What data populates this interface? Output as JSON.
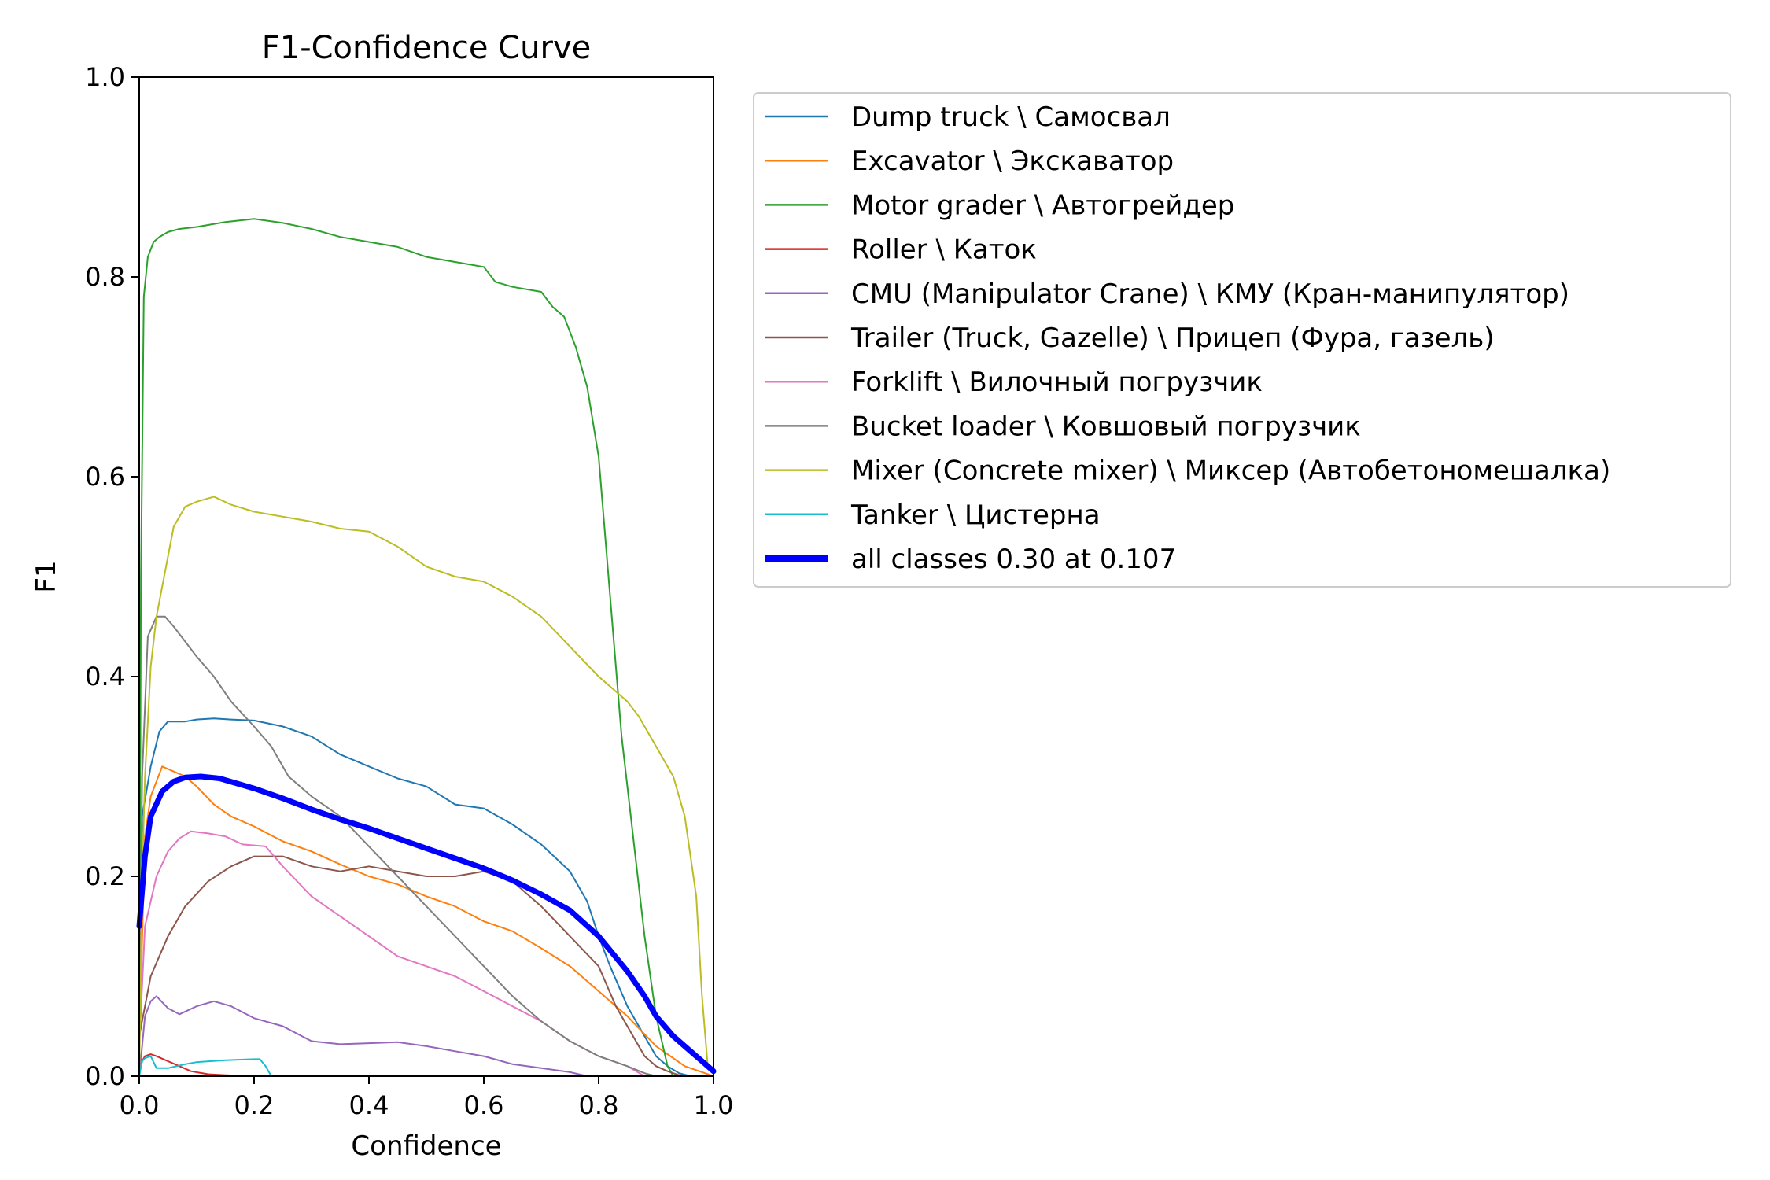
{
  "chart_data": {
    "type": "line",
    "title": "F1-Confidence Curve",
    "xlabel": "Confidence",
    "ylabel": "F1",
    "xlim": [
      0,
      1
    ],
    "ylim": [
      0,
      1
    ],
    "xticks": [
      "0.0",
      "0.2",
      "0.4",
      "0.6",
      "0.8",
      "1.0"
    ],
    "yticks": [
      "0.0",
      "0.2",
      "0.4",
      "0.6",
      "0.8",
      "1.0"
    ],
    "grid": false,
    "legend_position": "outside-right-top",
    "series": [
      {
        "name": "Dump truck \\ Самосвал",
        "color": "#1f77b4",
        "width": 2,
        "x": [
          0.0,
          0.005,
          0.02,
          0.035,
          0.05,
          0.08,
          0.1,
          0.13,
          0.16,
          0.2,
          0.25,
          0.3,
          0.35,
          0.4,
          0.45,
          0.5,
          0.55,
          0.6,
          0.65,
          0.7,
          0.75,
          0.78,
          0.8,
          0.82,
          0.85,
          0.88,
          0.9,
          0.92,
          0.94,
          0.96
        ],
        "y": [
          0.05,
          0.26,
          0.31,
          0.345,
          0.355,
          0.355,
          0.357,
          0.358,
          0.357,
          0.356,
          0.35,
          0.34,
          0.322,
          0.31,
          0.298,
          0.29,
          0.272,
          0.268,
          0.252,
          0.232,
          0.205,
          0.175,
          0.14,
          0.11,
          0.07,
          0.04,
          0.02,
          0.01,
          0.003,
          0.0
        ]
      },
      {
        "name": "Excavator \\ Экскаватор",
        "color": "#ff7f0e",
        "width": 2,
        "x": [
          0.0,
          0.01,
          0.02,
          0.04,
          0.06,
          0.08,
          0.1,
          0.13,
          0.16,
          0.2,
          0.25,
          0.3,
          0.35,
          0.4,
          0.45,
          0.5,
          0.55,
          0.6,
          0.65,
          0.7,
          0.75,
          0.8,
          0.85,
          0.9,
          0.95,
          1.0
        ],
        "y": [
          0.03,
          0.24,
          0.28,
          0.31,
          0.305,
          0.3,
          0.29,
          0.272,
          0.26,
          0.25,
          0.235,
          0.225,
          0.212,
          0.2,
          0.192,
          0.18,
          0.17,
          0.155,
          0.145,
          0.128,
          0.11,
          0.085,
          0.06,
          0.03,
          0.01,
          0.0
        ]
      },
      {
        "name": "Motor grader \\ Автогрейдер",
        "color": "#2ca02c",
        "width": 2,
        "x": [
          0.0,
          0.003,
          0.008,
          0.015,
          0.025,
          0.035,
          0.05,
          0.07,
          0.1,
          0.15,
          0.2,
          0.25,
          0.3,
          0.35,
          0.4,
          0.45,
          0.5,
          0.55,
          0.6,
          0.62,
          0.65,
          0.7,
          0.72,
          0.74,
          0.76,
          0.78,
          0.8,
          0.82,
          0.84,
          0.86,
          0.88,
          0.9,
          0.92,
          0.93
        ],
        "y": [
          0.0,
          0.5,
          0.78,
          0.82,
          0.835,
          0.84,
          0.845,
          0.848,
          0.85,
          0.855,
          0.858,
          0.854,
          0.848,
          0.84,
          0.835,
          0.83,
          0.82,
          0.815,
          0.81,
          0.795,
          0.79,
          0.785,
          0.77,
          0.76,
          0.73,
          0.69,
          0.62,
          0.48,
          0.34,
          0.24,
          0.14,
          0.06,
          0.01,
          0.0
        ]
      },
      {
        "name": "Roller \\ Каток",
        "color": "#d62728",
        "width": 2,
        "x": [
          0.0,
          0.01,
          0.02,
          0.03,
          0.05,
          0.07,
          0.09,
          0.12,
          0.15,
          0.2,
          0.25,
          0.3,
          0.4,
          0.5,
          0.6,
          0.7,
          0.8
        ],
        "y": [
          0.01,
          0.02,
          0.022,
          0.02,
          0.015,
          0.01,
          0.005,
          0.002,
          0.001,
          0.0,
          0.0,
          0.0,
          0.0,
          0.0,
          0.0,
          0.0,
          0.0
        ]
      },
      {
        "name": "CMU (Manipulator Crane) \\ КМУ (Кран-манипулятор)",
        "color": "#9467bd",
        "width": 2,
        "x": [
          0.0,
          0.01,
          0.02,
          0.03,
          0.05,
          0.07,
          0.1,
          0.13,
          0.16,
          0.2,
          0.25,
          0.3,
          0.35,
          0.4,
          0.45,
          0.5,
          0.55,
          0.6,
          0.65,
          0.7,
          0.75,
          0.78
        ],
        "y": [
          0.0,
          0.06,
          0.075,
          0.08,
          0.068,
          0.062,
          0.07,
          0.075,
          0.07,
          0.058,
          0.05,
          0.035,
          0.032,
          0.033,
          0.034,
          0.03,
          0.025,
          0.02,
          0.012,
          0.008,
          0.004,
          0.0
        ]
      },
      {
        "name": "Trailer (Truck, Gazelle) \\ Прицеп (Фура, газель)",
        "color": "#8c564b",
        "width": 2,
        "x": [
          0.0,
          0.02,
          0.05,
          0.08,
          0.12,
          0.16,
          0.2,
          0.25,
          0.3,
          0.35,
          0.4,
          0.45,
          0.5,
          0.55,
          0.6,
          0.65,
          0.7,
          0.75,
          0.8,
          0.83,
          0.86,
          0.88,
          0.9,
          0.92,
          0.94,
          0.96
        ],
        "y": [
          0.04,
          0.1,
          0.14,
          0.17,
          0.195,
          0.21,
          0.22,
          0.22,
          0.21,
          0.205,
          0.21,
          0.205,
          0.2,
          0.2,
          0.205,
          0.195,
          0.17,
          0.14,
          0.11,
          0.07,
          0.04,
          0.02,
          0.01,
          0.005,
          0.001,
          0.0
        ]
      },
      {
        "name": "Forklift \\ Вилочный погрузчик",
        "color": "#e377c2",
        "width": 2,
        "x": [
          0.0,
          0.01,
          0.03,
          0.05,
          0.07,
          0.09,
          0.12,
          0.15,
          0.18,
          0.22,
          0.25,
          0.3,
          0.35,
          0.4,
          0.45,
          0.5,
          0.55,
          0.6,
          0.65,
          0.7,
          0.75,
          0.8,
          0.85,
          0.88
        ],
        "y": [
          0.03,
          0.15,
          0.2,
          0.225,
          0.238,
          0.245,
          0.243,
          0.24,
          0.232,
          0.23,
          0.21,
          0.18,
          0.16,
          0.14,
          0.12,
          0.11,
          0.1,
          0.085,
          0.07,
          0.055,
          0.035,
          0.02,
          0.01,
          0.0
        ]
      },
      {
        "name": "Bucket loader \\ Ковшовый погрузчик",
        "color": "#7f7f7f",
        "width": 2,
        "x": [
          0.0,
          0.005,
          0.015,
          0.03,
          0.045,
          0.06,
          0.08,
          0.1,
          0.13,
          0.16,
          0.2,
          0.23,
          0.26,
          0.3,
          0.35,
          0.4,
          0.45,
          0.5,
          0.55,
          0.6,
          0.65,
          0.7,
          0.75,
          0.8,
          0.85,
          0.88,
          0.9
        ],
        "y": [
          0.03,
          0.3,
          0.44,
          0.46,
          0.46,
          0.45,
          0.435,
          0.42,
          0.4,
          0.375,
          0.35,
          0.33,
          0.3,
          0.28,
          0.26,
          0.23,
          0.2,
          0.17,
          0.14,
          0.11,
          0.08,
          0.055,
          0.035,
          0.02,
          0.01,
          0.003,
          0.0
        ]
      },
      {
        "name": "Mixer (Concrete mixer) \\ Миксер (Автобетономешалка)",
        "color": "#bcbd22",
        "width": 2,
        "x": [
          0.0,
          0.005,
          0.01,
          0.02,
          0.03,
          0.04,
          0.05,
          0.06,
          0.08,
          0.1,
          0.13,
          0.16,
          0.2,
          0.25,
          0.3,
          0.35,
          0.4,
          0.45,
          0.5,
          0.55,
          0.6,
          0.65,
          0.7,
          0.75,
          0.8,
          0.83,
          0.85,
          0.87,
          0.9,
          0.93,
          0.95,
          0.97,
          0.98,
          0.99
        ],
        "y": [
          0.0,
          0.2,
          0.3,
          0.41,
          0.46,
          0.49,
          0.52,
          0.55,
          0.57,
          0.575,
          0.58,
          0.572,
          0.565,
          0.56,
          0.555,
          0.548,
          0.545,
          0.53,
          0.51,
          0.5,
          0.495,
          0.48,
          0.46,
          0.43,
          0.4,
          0.385,
          0.375,
          0.36,
          0.33,
          0.3,
          0.26,
          0.18,
          0.08,
          0.01
        ]
      },
      {
        "name": "Tanker \\ Цистерна",
        "color": "#17becf",
        "width": 2,
        "x": [
          0.0,
          0.005,
          0.01,
          0.02,
          0.03,
          0.05,
          0.08,
          0.1,
          0.15,
          0.2,
          0.21,
          0.22,
          0.23,
          0.3,
          0.4,
          0.5,
          0.6,
          0.7,
          0.8
        ],
        "y": [
          0.0,
          0.015,
          0.018,
          0.02,
          0.008,
          0.008,
          0.012,
          0.014,
          0.016,
          0.017,
          0.017,
          0.01,
          0.0,
          0.0,
          0.0,
          0.0,
          0.0,
          0.0,
          0.0
        ]
      },
      {
        "name": "all classes 0.30 at 0.107",
        "color": "#0000ff",
        "width": 7,
        "x": [
          0.0,
          0.01,
          0.02,
          0.04,
          0.06,
          0.08,
          0.107,
          0.14,
          0.17,
          0.2,
          0.25,
          0.3,
          0.35,
          0.4,
          0.45,
          0.5,
          0.55,
          0.6,
          0.65,
          0.7,
          0.75,
          0.8,
          0.85,
          0.88,
          0.9,
          0.93,
          0.96,
          1.0
        ],
        "y": [
          0.15,
          0.22,
          0.26,
          0.285,
          0.295,
          0.299,
          0.3,
          0.298,
          0.293,
          0.288,
          0.278,
          0.267,
          0.257,
          0.248,
          0.238,
          0.228,
          0.218,
          0.208,
          0.196,
          0.182,
          0.166,
          0.14,
          0.105,
          0.08,
          0.06,
          0.04,
          0.025,
          0.005
        ]
      }
    ]
  }
}
